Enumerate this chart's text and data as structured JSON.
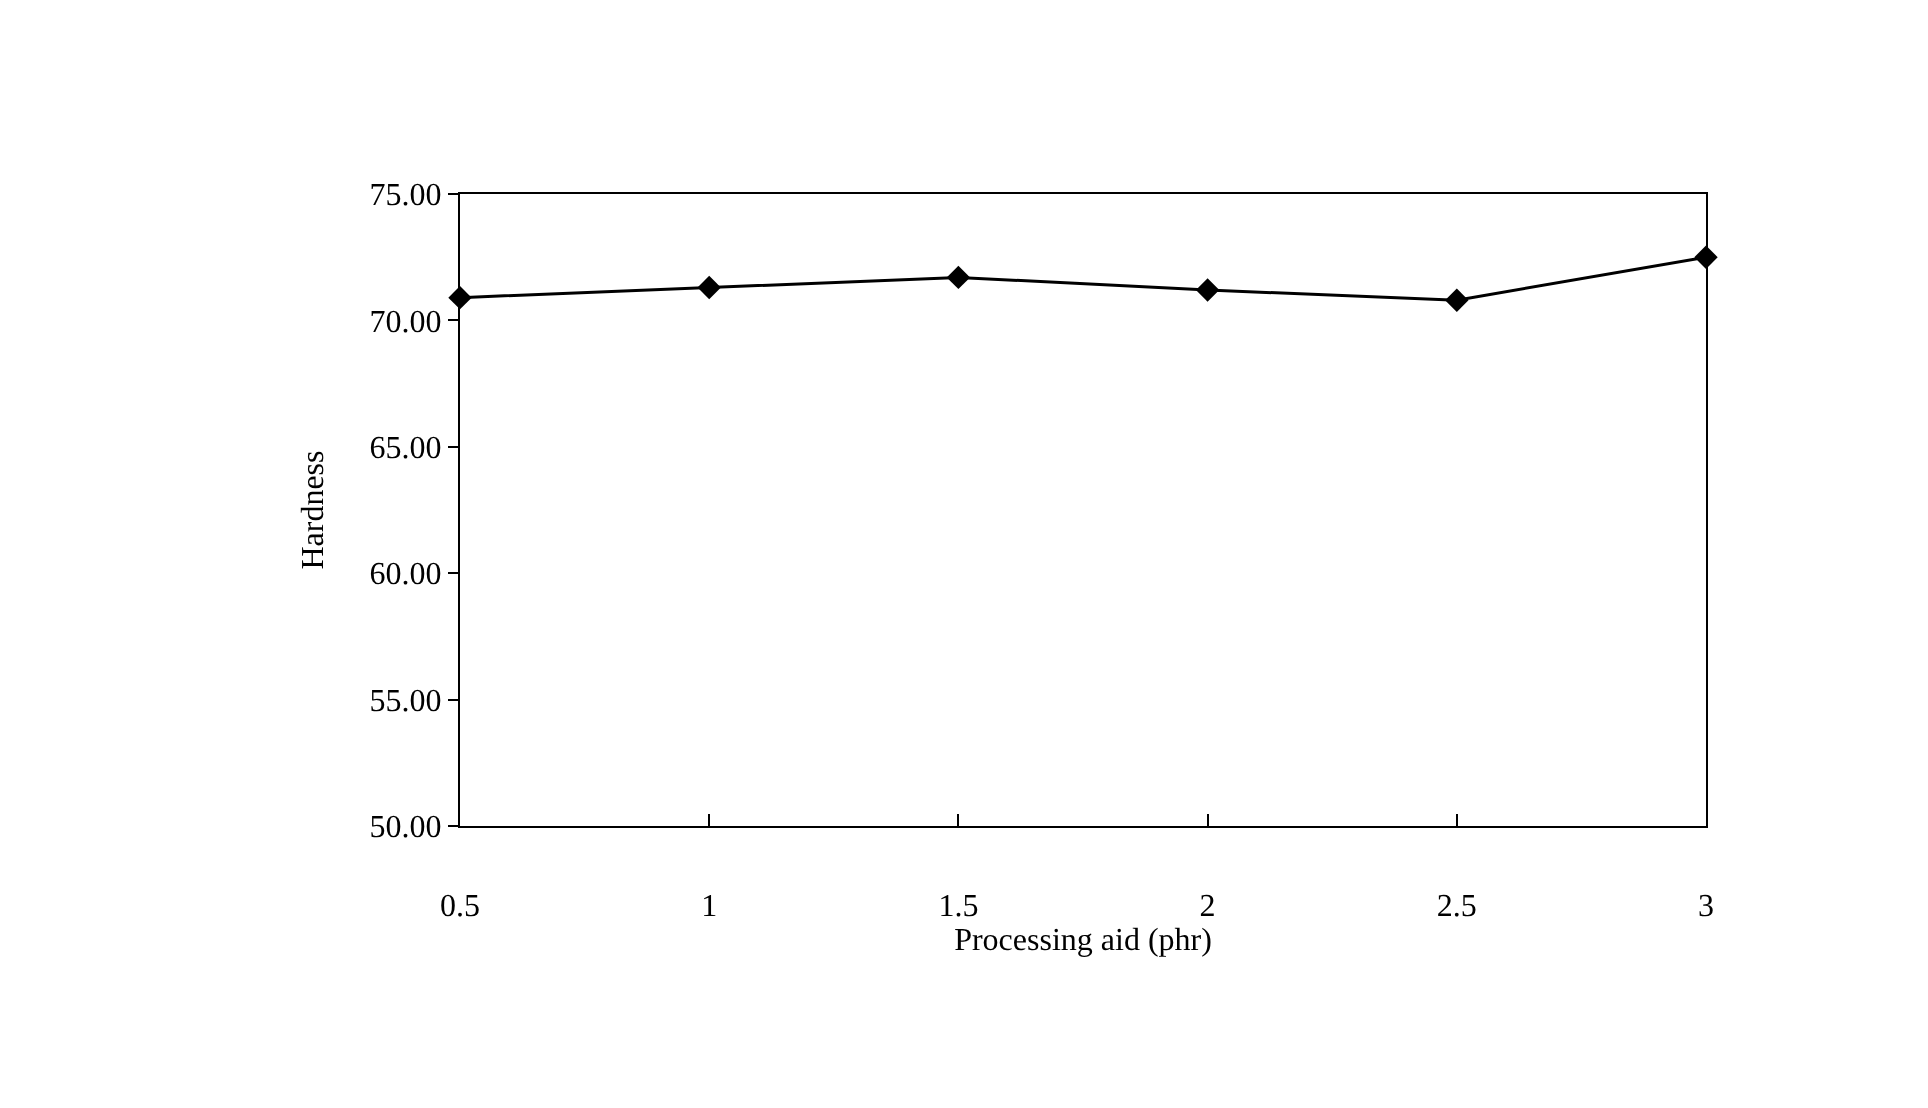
{
  "chart_data": {
    "type": "line",
    "xlabel": "Processing aid (phr)",
    "ylabel": "Hardness",
    "x": [
      0.5,
      1,
      1.5,
      2,
      2.5,
      3
    ],
    "series": [
      {
        "color": "#000000",
        "values": [
          70.9,
          71.3,
          71.7,
          71.2,
          70.8,
          72.5
        ]
      }
    ],
    "xlim": [
      0.5,
      3
    ],
    "xticks": [
      0.5,
      1,
      1.5,
      2,
      2.5,
      3
    ],
    "ylim": [
      50,
      75
    ],
    "yticks": [
      {
        "value": 50,
        "label": "50.00"
      },
      {
        "value": 55,
        "label": "55.00"
      },
      {
        "value": 60,
        "label": "60.00"
      },
      {
        "value": 65,
        "label": "65.00"
      },
      {
        "value": 70,
        "label": "70.00"
      },
      {
        "value": 75,
        "label": "75.00"
      }
    ],
    "grid": false,
    "legend": false,
    "marker": "diamond",
    "line_style": "solid"
  }
}
